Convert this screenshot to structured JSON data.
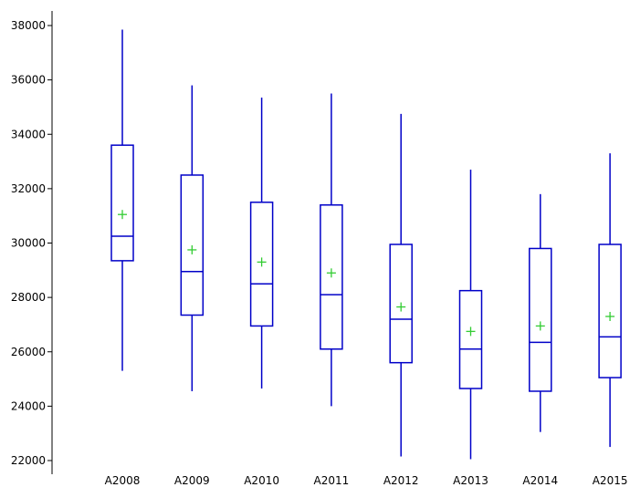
{
  "chart_data": {
    "type": "boxplot",
    "title": "",
    "xlabel": "",
    "ylabel": "",
    "ylim": [
      22000,
      38000
    ],
    "y_ticks": [
      22000,
      24000,
      26000,
      28000,
      30000,
      32000,
      34000,
      36000,
      38000
    ],
    "y_tick_labels": [
      "22000",
      "24000",
      "26000",
      "28000",
      "30000",
      "32000",
      "34000",
      "36000",
      "38000"
    ],
    "categories": [
      "A2008",
      "A2009",
      "A2010",
      "A2011",
      "A2012",
      "A2013",
      "A2014",
      "A2015"
    ],
    "boxes": [
      {
        "whisker_low": 25300,
        "q1": 29350,
        "median": 30250,
        "q3": 33600,
        "whisker_high": 37850,
        "mean": 31050
      },
      {
        "whisker_low": 24550,
        "q1": 27350,
        "median": 28950,
        "q3": 32500,
        "whisker_high": 35800,
        "mean": 29750
      },
      {
        "whisker_low": 24650,
        "q1": 26950,
        "median": 28500,
        "q3": 31500,
        "whisker_high": 35350,
        "mean": 29300
      },
      {
        "whisker_low": 24000,
        "q1": 26100,
        "median": 28100,
        "q3": 31400,
        "whisker_high": 35500,
        "mean": 28900
      },
      {
        "whisker_low": 22150,
        "q1": 25600,
        "median": 27200,
        "q3": 29950,
        "whisker_high": 34750,
        "mean": 27650
      },
      {
        "whisker_low": 22050,
        "q1": 24650,
        "median": 26100,
        "q3": 28250,
        "whisker_high": 32700,
        "mean": 26750
      },
      {
        "whisker_low": 23050,
        "q1": 24550,
        "median": 26350,
        "q3": 29800,
        "whisker_high": 31800,
        "mean": 26950
      },
      {
        "whisker_low": 22500,
        "q1": 25050,
        "median": 26550,
        "q3": 29950,
        "whisker_high": 33300,
        "mean": 27300
      }
    ],
    "box_color": "#0000c8",
    "mean_marker_color": "#33cc33",
    "axis_color": "#000000",
    "grid": false,
    "legend": "none"
  }
}
